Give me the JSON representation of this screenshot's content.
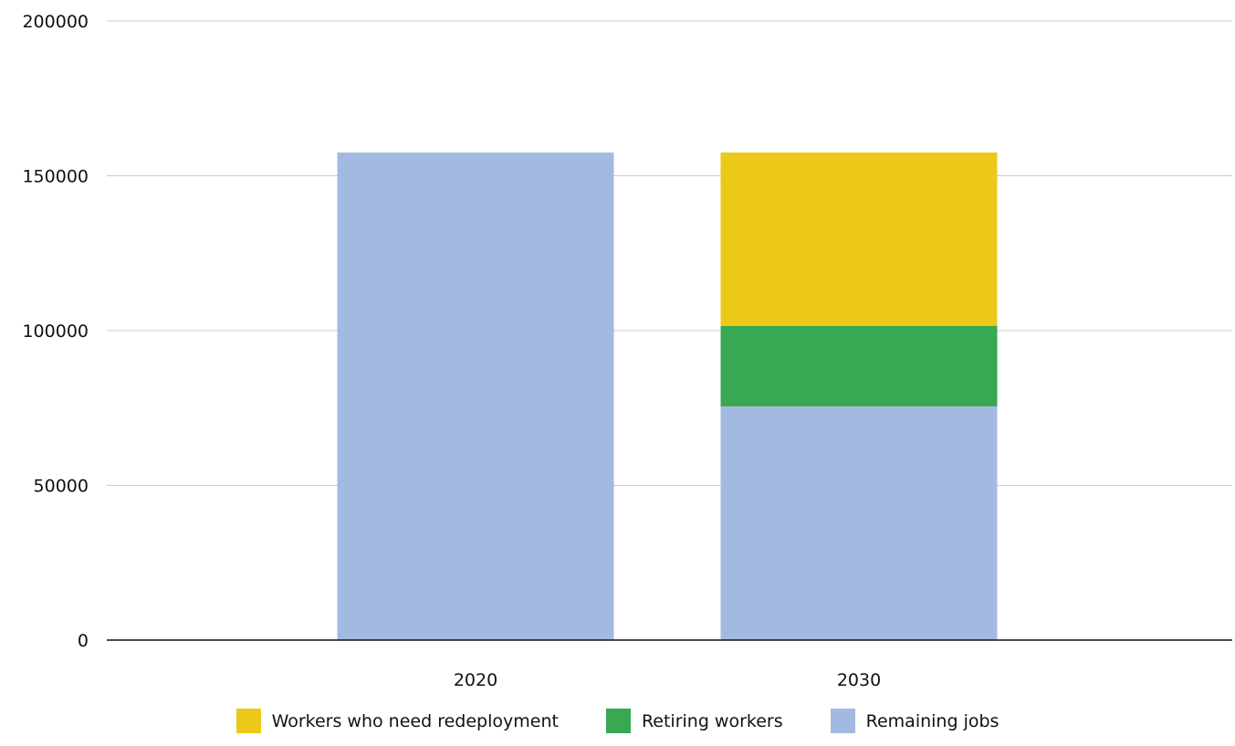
{
  "chart_data": {
    "type": "bar",
    "stacked": true,
    "categories": [
      "2020",
      "2030"
    ],
    "series": [
      {
        "name": "Remaining jobs",
        "color": "#a3bae0",
        "values": [
          157500,
          75500
        ]
      },
      {
        "name": "Retiring workers",
        "color": "#39a852",
        "values": [
          0,
          26000
        ]
      },
      {
        "name": "Workers who need redeployment",
        "color": "#ecc819",
        "values": [
          0,
          56000
        ]
      }
    ],
    "ylim": [
      0,
      200000
    ],
    "yticks": [
      0,
      50000,
      100000,
      150000,
      200000
    ],
    "ytick_labels": [
      "0",
      "50000",
      "100000",
      "150000",
      "200000"
    ],
    "grid": true,
    "legend_position": "bottom",
    "legend_order": [
      "Workers who need redeployment",
      "Retiring workers",
      "Remaining jobs"
    ],
    "title": "",
    "xlabel": "",
    "ylabel": ""
  }
}
